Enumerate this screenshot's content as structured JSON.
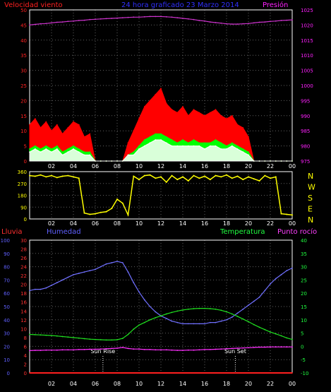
{
  "colors": {
    "background": "#000000",
    "frame": "#ffffff",
    "grid": "#606060",
    "wind_axis": "#ff2020",
    "pressure_axis": "#ff20ff",
    "direction_axis": "#ffff00",
    "rain_axis": "#ff3030",
    "humidity_axis": "#6060ff",
    "temp_axis": "#20ff40",
    "dew_axis": "#ff40ff"
  },
  "x_tick_labels": [
    "02",
    "04",
    "06",
    "08",
    "10",
    "12",
    "14",
    "16",
    "18",
    "20",
    "22",
    "00"
  ],
  "chart_data": [
    {
      "type": "area",
      "panel": "wind_pressure",
      "title": "24 hora graficado   23 Marzo 2014",
      "ylabel_left": "Velocidad viento",
      "ylabel_right": "Presión",
      "ylim_left": [
        0,
        50
      ],
      "ylim_right": [
        975,
        1025
      ],
      "yticks_left": [
        "0",
        "5",
        "10",
        "15",
        "20",
        "25",
        "30",
        "35",
        "40",
        "45",
        "50"
      ],
      "yticks_right": [
        "975",
        "980",
        "985",
        "990",
        "995",
        "1000",
        "1005",
        "1010",
        "1015",
        "1020",
        "1025"
      ],
      "grid": true,
      "hours": [
        0,
        0.5,
        1,
        1.5,
        2,
        2.5,
        3,
        3.5,
        4,
        4.5,
        5,
        5.5,
        6,
        6.5,
        7,
        7.5,
        8,
        8.5,
        9,
        9.5,
        10,
        10.5,
        11,
        11.5,
        12,
        12.5,
        13,
        13.5,
        14,
        14.5,
        15,
        15.5,
        16,
        16.5,
        17,
        17.5,
        18,
        18.5,
        19,
        19.5,
        20,
        20.5,
        21,
        21.5,
        22,
        22.5,
        23,
        23.5,
        24
      ],
      "series": [
        {
          "name": "gust",
          "color": "#ff0000",
          "values": [
            12,
            14,
            11,
            13,
            10,
            12,
            9,
            11,
            13,
            12,
            8,
            9,
            0,
            0,
            0,
            0,
            0,
            0,
            6,
            10,
            14,
            18,
            20,
            22,
            24,
            19,
            17,
            16,
            18,
            15,
            17,
            16,
            15,
            16,
            17,
            15,
            14,
            15,
            12,
            11,
            8,
            0,
            0,
            0,
            0,
            0,
            0,
            0,
            0
          ]
        },
        {
          "name": "average",
          "color": "#00ff00",
          "values": [
            4,
            5,
            4,
            5,
            4,
            5,
            3,
            4,
            5,
            4,
            3,
            3,
            0,
            0,
            0,
            0,
            0,
            0,
            2,
            3,
            5,
            7,
            8,
            9,
            9,
            8,
            7,
            6,
            7,
            6,
            7,
            6,
            6,
            6,
            7,
            6,
            5,
            6,
            5,
            4,
            3,
            0,
            0,
            0,
            0,
            0,
            0,
            0,
            0
          ]
        },
        {
          "name": "lull",
          "color": "#ffffff",
          "values": [
            3,
            4,
            3,
            4,
            3,
            4,
            2,
            3,
            4,
            3,
            2,
            2,
            0,
            0,
            0,
            0,
            0,
            0,
            2,
            2,
            4,
            5,
            6,
            7,
            7,
            6,
            5,
            5,
            5,
            5,
            5,
            5,
            4,
            5,
            5,
            4,
            4,
            5,
            4,
            3,
            2,
            0,
            0,
            0,
            0,
            0,
            0,
            0,
            0
          ]
        },
        {
          "name": "pressure",
          "axis": "right",
          "color": "#cc33cc",
          "values": [
            1020,
            1020.2,
            1020.4,
            1020.5,
            1020.7,
            1020.9,
            1021,
            1021.2,
            1021.3,
            1021.5,
            1021.6,
            1021.8,
            1021.9,
            1022,
            1022.1,
            1022.2,
            1022.3,
            1022.4,
            1022.5,
            1022.6,
            1022.6,
            1022.7,
            1022.8,
            1022.8,
            1022.8,
            1022.7,
            1022.6,
            1022.4,
            1022.2,
            1022,
            1021.8,
            1021.5,
            1021.3,
            1021,
            1020.8,
            1020.6,
            1020.4,
            1020.3,
            1020.3,
            1020.4,
            1020.5,
            1020.7,
            1020.9,
            1021,
            1021.2,
            1021.3,
            1021.5,
            1021.6,
            1021.7
          ]
        }
      ]
    },
    {
      "type": "line",
      "panel": "wind_direction",
      "ylim_left": [
        0,
        360
      ],
      "yticks_left": [
        "0",
        "90",
        "180",
        "270",
        "360"
      ],
      "right_labels": [
        "N",
        "W",
        "S",
        "E",
        "N"
      ],
      "grid": true,
      "hours": [
        0,
        0.5,
        1,
        1.5,
        2,
        2.5,
        3,
        3.5,
        4,
        4.5,
        5,
        5.5,
        6,
        6.5,
        7,
        7.5,
        8,
        8.5,
        9,
        9.5,
        10,
        10.5,
        11,
        11.5,
        12,
        12.5,
        13,
        13.5,
        14,
        14.5,
        15,
        15.5,
        16,
        16.5,
        17,
        17.5,
        18,
        18.5,
        19,
        19.5,
        20,
        20.5,
        21,
        21.5,
        22,
        22.5,
        23,
        23.5,
        24
      ],
      "series": [
        {
          "name": "direction",
          "color": "#ffff00",
          "values": [
            330,
            325,
            335,
            320,
            330,
            315,
            325,
            330,
            320,
            310,
            45,
            35,
            40,
            50,
            55,
            80,
            150,
            120,
            30,
            325,
            300,
            330,
            335,
            310,
            320,
            280,
            330,
            300,
            320,
            290,
            330,
            310,
            325,
            300,
            330,
            320,
            335,
            310,
            325,
            300,
            320,
            305,
            290,
            330,
            310,
            320,
            40,
            35,
            30
          ]
        }
      ]
    },
    {
      "type": "line",
      "panel": "humidity_temp",
      "labels": {
        "rain": "Lluvia",
        "humidity": "Humedad",
        "temperature": "Temperatura",
        "dew": "Punto rocío"
      },
      "ylim_humidity": [
        0,
        100
      ],
      "ylim_rain": [
        0,
        30
      ],
      "ylim_temp": [
        -10,
        40
      ],
      "yticks_humidity": [
        "0",
        "10",
        "20",
        "30",
        "40",
        "50",
        "60",
        "70",
        "80",
        "90",
        "100"
      ],
      "yticks_rain": [
        "0",
        "2",
        "4",
        "6",
        "8",
        "10",
        "12",
        "14",
        "16",
        "18",
        "20",
        "22",
        "24",
        "26",
        "28",
        "30"
      ],
      "yticks_temp": [
        "-10",
        "-5",
        "0",
        "5",
        "10",
        "15",
        "20",
        "25",
        "30",
        "35",
        "40"
      ],
      "annotations": [
        {
          "label": "Sun Rise",
          "hour": 6.7
        },
        {
          "label": "Sun Set",
          "hour": 18.8
        }
      ],
      "grid": true,
      "hours": [
        0,
        0.5,
        1,
        1.5,
        2,
        2.5,
        3,
        3.5,
        4,
        4.5,
        5,
        5.5,
        6,
        6.5,
        7,
        7.5,
        8,
        8.5,
        9,
        9.5,
        10,
        10.5,
        11,
        11.5,
        12,
        12.5,
        13,
        13.5,
        14,
        14.5,
        15,
        15.5,
        16,
        16.5,
        17,
        17.5,
        18,
        18.5,
        19,
        19.5,
        20,
        20.5,
        21,
        21.5,
        22,
        22.5,
        23,
        23.5,
        24
      ],
      "series": [
        {
          "name": "humedad",
          "axis": "humidity",
          "color": "#7070ff",
          "values": [
            62,
            63,
            63,
            64,
            66,
            68,
            70,
            72,
            74,
            75,
            76,
            77,
            78,
            80,
            82,
            83,
            84,
            83,
            76,
            68,
            61,
            55,
            50,
            46,
            43,
            41,
            39,
            38,
            37,
            37,
            37,
            37,
            37,
            38,
            38,
            39,
            40,
            42,
            45,
            48,
            51,
            54,
            57,
            62,
            67,
            71,
            74,
            77,
            79
          ]
        },
        {
          "name": "temperatura",
          "axis": "temp",
          "color": "#20e020",
          "values": [
            4.5,
            4.4,
            4.3,
            4.2,
            4.1,
            3.9,
            3.7,
            3.5,
            3.3,
            3.1,
            2.9,
            2.7,
            2.6,
            2.5,
            2.4,
            2.4,
            2.5,
            3,
            4.5,
            6.5,
            8,
            9,
            10,
            10.8,
            11.5,
            12.2,
            12.8,
            13.3,
            13.7,
            14,
            14.2,
            14.3,
            14.3,
            14.2,
            14,
            13.6,
            13,
            12.2,
            11.3,
            10.3,
            9.3,
            8.2,
            7.2,
            6.3,
            5.4,
            4.7,
            4,
            3.2,
            2.6
          ]
        },
        {
          "name": "punto_rocio",
          "axis": "temp",
          "color": "#ff30ff",
          "values": [
            -1.6,
            -1.5,
            -1.5,
            -1.4,
            -1.4,
            -1.4,
            -1.3,
            -1.3,
            -1.3,
            -1.2,
            -1.2,
            -1.1,
            -1.1,
            -1,
            -0.9,
            -0.8,
            -0.7,
            -0.4,
            -0.8,
            -1,
            -1,
            -1.2,
            -1.2,
            -1.3,
            -1.3,
            -1.3,
            -1.4,
            -1.5,
            -1.5,
            -1.4,
            -1.4,
            -1.3,
            -1.2,
            -1.2,
            -1.1,
            -1,
            -0.9,
            -0.8,
            -0.7,
            -0.6,
            -0.5,
            -0.4,
            -0.3,
            -0.3,
            -0.2,
            -0.2,
            -0.2,
            -0.2,
            -0.2
          ]
        },
        {
          "name": "lluvia",
          "axis": "rain",
          "color": "#ff2020",
          "values": [
            0,
            0,
            0,
            0,
            0,
            0,
            0,
            0,
            0,
            0,
            0,
            0,
            0,
            0,
            0,
            0,
            0,
            0,
            0,
            0,
            0,
            0,
            0,
            0,
            0,
            0,
            0,
            0,
            0,
            0,
            0,
            0,
            0,
            0,
            0,
            0,
            0,
            0,
            0,
            0,
            0,
            0,
            0,
            0,
            0,
            0,
            0,
            0,
            0
          ]
        }
      ]
    }
  ]
}
